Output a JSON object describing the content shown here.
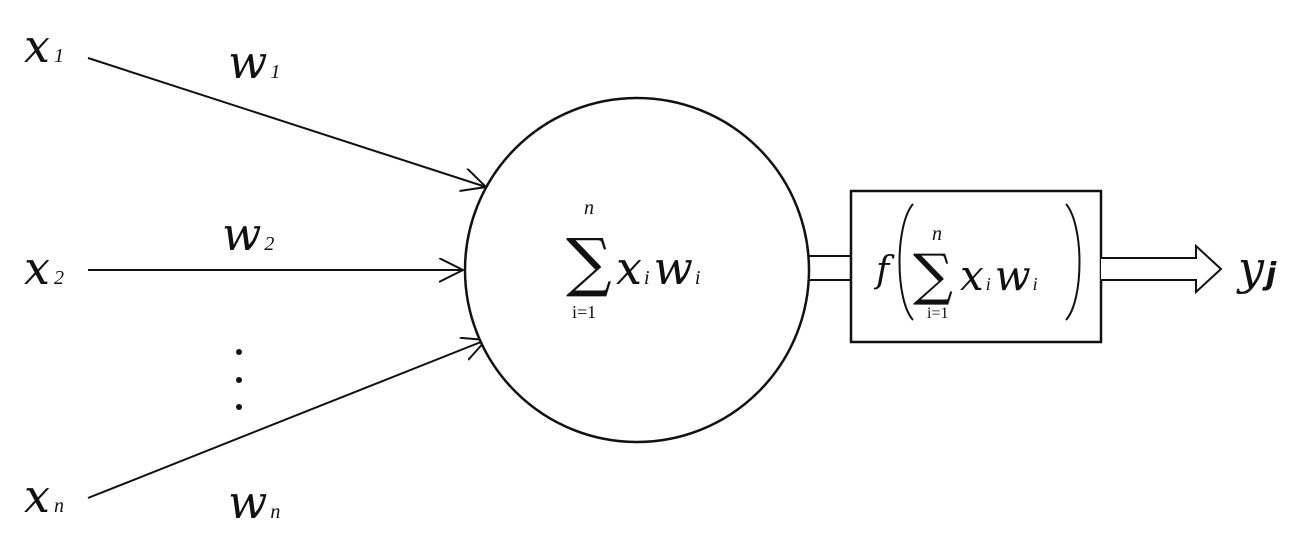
{
  "inputs": [
    {
      "var": "x",
      "sub": "1",
      "weight": "w",
      "wsub": "1"
    },
    {
      "var": "x",
      "sub": "2",
      "weight": "w",
      "wsub": "2"
    },
    {
      "var": "x",
      "sub": "n",
      "weight": "w",
      "wsub": "n"
    }
  ],
  "ellipsis": "⋮",
  "neuron": {
    "sigma": "∑",
    "upper": "n",
    "lower": "i=1",
    "term_a": "x",
    "term_a_sub": "i",
    "term_b": "w",
    "term_b_sub": "i"
  },
  "activation": {
    "func": "f",
    "sigma": "∑",
    "upper": "n",
    "lower": "i=1",
    "term_a": "x",
    "term_a_sub": "i",
    "term_b": "w",
    "term_b_sub": "i"
  },
  "output": {
    "var": "y",
    "sub": "j"
  }
}
